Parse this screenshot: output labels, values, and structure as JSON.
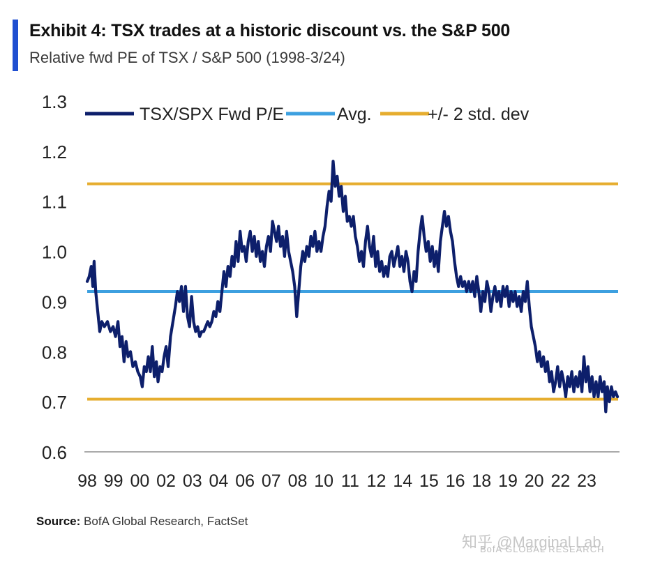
{
  "exhibit": {
    "title": "Exhibit 4: TSX trades at a historic discount vs. the S&P 500",
    "subtitle": "Relative fwd PE of TSX / S&P 500 (1998-3/24)",
    "source_label": "Source:",
    "source_text": "BofA Global Research, FactSet",
    "watermark": "知乎 @Marginal Lab",
    "footer_brand": "BofA GLOBAL RESEARCH"
  },
  "colors": {
    "accent": "#1f4fd1",
    "series": "#0d1f6b",
    "avg": "#3da0e0",
    "band": "#e6ad2f"
  },
  "chart_data": {
    "type": "line",
    "title": "Exhibit 4: TSX trades at a historic discount vs. the S&P 500",
    "subtitle": "Relative fwd PE of TSX / S&P 500 (1998-3/24)",
    "xlabel": "",
    "ylabel": "",
    "ylim": [
      0.6,
      1.3
    ],
    "yticks": [
      0.6,
      0.7,
      0.8,
      0.9,
      1.0,
      1.1,
      1.2,
      1.3
    ],
    "ytick_labels": [
      "0.6",
      "0.7",
      "0.8",
      "0.9",
      "1.0",
      "1.1",
      "1.2",
      "1.3"
    ],
    "xlim": [
      1998.0,
      2024.25
    ],
    "xticks": [
      {
        "label": "98",
        "x": 1998.0
      },
      {
        "label": "99",
        "x": 1999.3
      },
      {
        "label": "00",
        "x": 2000.6
      },
      {
        "label": "02",
        "x": 2001.9
      },
      {
        "label": "03",
        "x": 2003.2
      },
      {
        "label": "04",
        "x": 2004.5
      },
      {
        "label": "06",
        "x": 2005.8
      },
      {
        "label": "07",
        "x": 2007.1
      },
      {
        "label": "08",
        "x": 2008.4
      },
      {
        "label": "10",
        "x": 2009.7
      },
      {
        "label": "11",
        "x": 2011.0
      },
      {
        "label": "12",
        "x": 2012.3
      },
      {
        "label": "14",
        "x": 2013.6
      },
      {
        "label": "15",
        "x": 2014.9
      },
      {
        "label": "16",
        "x": 2016.2
      },
      {
        "label": "18",
        "x": 2017.5
      },
      {
        "label": "19",
        "x": 2018.8
      },
      {
        "label": "20",
        "x": 2020.1
      },
      {
        "label": "22",
        "x": 2021.4
      },
      {
        "label": "23",
        "x": 2022.7
      }
    ],
    "legend": {
      "position": "top-left",
      "entries": [
        {
          "name": "TSX/SPX Fwd P/E",
          "key": "series"
        },
        {
          "name": "Avg.",
          "key": "avg"
        },
        {
          "name": "+/- 2 std. dev",
          "key": "band"
        }
      ]
    },
    "grid": false,
    "reference_lines": [
      {
        "name": "Avg.",
        "value": 0.92
      },
      {
        "name": "+2 std. dev",
        "value": 1.135
      },
      {
        "name": "-2 std. dev",
        "value": 0.705
      }
    ],
    "series": [
      {
        "name": "TSX/SPX Fwd P/E",
        "points": [
          [
            1998.0,
            0.94
          ],
          [
            1998.1,
            0.95
          ],
          [
            1998.2,
            0.97
          ],
          [
            1998.28,
            0.93
          ],
          [
            1998.34,
            0.98
          ],
          [
            1998.42,
            0.92
          ],
          [
            1998.52,
            0.88
          ],
          [
            1998.62,
            0.84
          ],
          [
            1998.72,
            0.86
          ],
          [
            1998.85,
            0.85
          ],
          [
            1999.0,
            0.86
          ],
          [
            1999.15,
            0.84
          ],
          [
            1999.28,
            0.85
          ],
          [
            1999.4,
            0.83
          ],
          [
            1999.52,
            0.86
          ],
          [
            1999.62,
            0.81
          ],
          [
            1999.72,
            0.83
          ],
          [
            1999.82,
            0.78
          ],
          [
            1999.92,
            0.82
          ],
          [
            2000.02,
            0.79
          ],
          [
            2000.14,
            0.8
          ],
          [
            2000.26,
            0.77
          ],
          [
            2000.38,
            0.78
          ],
          [
            2000.5,
            0.76
          ],
          [
            2000.62,
            0.75
          ],
          [
            2000.72,
            0.73
          ],
          [
            2000.82,
            0.77
          ],
          [
            2000.92,
            0.76
          ],
          [
            2001.02,
            0.79
          ],
          [
            2001.12,
            0.76
          ],
          [
            2001.22,
            0.81
          ],
          [
            2001.32,
            0.75
          ],
          [
            2001.42,
            0.78
          ],
          [
            2001.5,
            0.74
          ],
          [
            2001.6,
            0.77
          ],
          [
            2001.7,
            0.76
          ],
          [
            2001.8,
            0.79
          ],
          [
            2001.9,
            0.81
          ],
          [
            2002.0,
            0.77
          ],
          [
            2002.12,
            0.83
          ],
          [
            2002.24,
            0.86
          ],
          [
            2002.36,
            0.89
          ],
          [
            2002.46,
            0.92
          ],
          [
            2002.56,
            0.9
          ],
          [
            2002.66,
            0.93
          ],
          [
            2002.76,
            0.88
          ],
          [
            2002.86,
            0.93
          ],
          [
            2002.96,
            0.87
          ],
          [
            2003.06,
            0.85
          ],
          [
            2003.16,
            0.91
          ],
          [
            2003.26,
            0.86
          ],
          [
            2003.36,
            0.84
          ],
          [
            2003.46,
            0.85
          ],
          [
            2003.56,
            0.83
          ],
          [
            2003.66,
            0.84
          ],
          [
            2003.76,
            0.84
          ],
          [
            2003.86,
            0.85
          ],
          [
            2003.96,
            0.86
          ],
          [
            2004.06,
            0.85
          ],
          [
            2004.16,
            0.86
          ],
          [
            2004.26,
            0.88
          ],
          [
            2004.36,
            0.87
          ],
          [
            2004.46,
            0.9
          ],
          [
            2004.56,
            0.88
          ],
          [
            2004.66,
            0.92
          ],
          [
            2004.76,
            0.96
          ],
          [
            2004.86,
            0.93
          ],
          [
            2004.96,
            0.97
          ],
          [
            2005.06,
            0.95
          ],
          [
            2005.16,
            0.99
          ],
          [
            2005.26,
            0.97
          ],
          [
            2005.36,
            1.02
          ],
          [
            2005.46,
            0.98
          ],
          [
            2005.56,
            1.04
          ],
          [
            2005.66,
            1.0
          ],
          [
            2005.76,
            1.01
          ],
          [
            2005.86,
            0.98
          ],
          [
            2005.96,
            1.02
          ],
          [
            2006.06,
            1.04
          ],
          [
            2006.16,
            1.0
          ],
          [
            2006.26,
            1.03
          ],
          [
            2006.36,
            0.99
          ],
          [
            2006.46,
            1.02
          ],
          [
            2006.56,
            0.98
          ],
          [
            2006.66,
            1.0
          ],
          [
            2006.76,
            0.97
          ],
          [
            2006.86,
            1.01
          ],
          [
            2006.96,
            1.03
          ],
          [
            2007.06,
            1.0
          ],
          [
            2007.16,
            1.06
          ],
          [
            2007.26,
            1.04
          ],
          [
            2007.36,
            1.02
          ],
          [
            2007.46,
            1.05
          ],
          [
            2007.56,
            1.01
          ],
          [
            2007.66,
            1.03
          ],
          [
            2007.76,
            0.99
          ],
          [
            2007.86,
            1.04
          ],
          [
            2007.96,
            1.0
          ],
          [
            2008.06,
            0.98
          ],
          [
            2008.16,
            0.96
          ],
          [
            2008.26,
            0.93
          ],
          [
            2008.36,
            0.87
          ],
          [
            2008.46,
            0.92
          ],
          [
            2008.56,
            0.97
          ],
          [
            2008.66,
            1.0
          ],
          [
            2008.76,
            0.98
          ],
          [
            2008.86,
            1.01
          ],
          [
            2008.96,
            0.99
          ],
          [
            2009.06,
            1.03
          ],
          [
            2009.16,
            1.01
          ],
          [
            2009.26,
            1.04
          ],
          [
            2009.36,
            1.0
          ],
          [
            2009.46,
            1.02
          ],
          [
            2009.56,
            1.0
          ],
          [
            2009.66,
            1.03
          ],
          [
            2009.76,
            1.05
          ],
          [
            2009.86,
            1.09
          ],
          [
            2009.96,
            1.12
          ],
          [
            2010.06,
            1.1
          ],
          [
            2010.16,
            1.18
          ],
          [
            2010.26,
            1.13
          ],
          [
            2010.36,
            1.15
          ],
          [
            2010.46,
            1.11
          ],
          [
            2010.56,
            1.13
          ],
          [
            2010.66,
            1.08
          ],
          [
            2010.76,
            1.11
          ],
          [
            2010.86,
            1.06
          ],
          [
            2010.96,
            1.07
          ],
          [
            2011.06,
            1.05
          ],
          [
            2011.16,
            1.07
          ],
          [
            2011.26,
            1.03
          ],
          [
            2011.36,
            1.01
          ],
          [
            2011.46,
            0.98
          ],
          [
            2011.56,
            1.0
          ],
          [
            2011.66,
            0.97
          ],
          [
            2011.76,
            1.02
          ],
          [
            2011.86,
            1.05
          ],
          [
            2011.96,
            1.01
          ],
          [
            2012.06,
            0.99
          ],
          [
            2012.16,
            1.03
          ],
          [
            2012.26,
            0.97
          ],
          [
            2012.36,
            1.0
          ],
          [
            2012.46,
            0.96
          ],
          [
            2012.56,
            0.98
          ],
          [
            2012.66,
            0.95
          ],
          [
            2012.76,
            0.97
          ],
          [
            2012.86,
            0.95
          ],
          [
            2012.96,
            0.99
          ],
          [
            2013.06,
            1.0
          ],
          [
            2013.16,
            0.97
          ],
          [
            2013.26,
            0.99
          ],
          [
            2013.36,
            1.01
          ],
          [
            2013.46,
            0.97
          ],
          [
            2013.56,
            0.99
          ],
          [
            2013.66,
            0.96
          ],
          [
            2013.76,
            1.0
          ],
          [
            2013.86,
            0.98
          ],
          [
            2013.96,
            0.94
          ],
          [
            2014.06,
            0.92
          ],
          [
            2014.16,
            0.96
          ],
          [
            2014.26,
            0.94
          ],
          [
            2014.36,
            1.0
          ],
          [
            2014.46,
            1.04
          ],
          [
            2014.56,
            1.07
          ],
          [
            2014.66,
            1.03
          ],
          [
            2014.76,
            1.0
          ],
          [
            2014.86,
            1.02
          ],
          [
            2014.96,
            0.98
          ],
          [
            2015.06,
            1.01
          ],
          [
            2015.16,
            0.97
          ],
          [
            2015.26,
            1.0
          ],
          [
            2015.36,
            0.96
          ],
          [
            2015.46,
            1.02
          ],
          [
            2015.56,
            1.05
          ],
          [
            2015.66,
            1.08
          ],
          [
            2015.76,
            1.05
          ],
          [
            2015.86,
            1.07
          ],
          [
            2015.96,
            1.04
          ],
          [
            2016.06,
            1.02
          ],
          [
            2016.16,
            0.98
          ],
          [
            2016.26,
            0.95
          ],
          [
            2016.36,
            0.93
          ],
          [
            2016.46,
            0.95
          ],
          [
            2016.56,
            0.93
          ],
          [
            2016.66,
            0.94
          ],
          [
            2016.76,
            0.92
          ],
          [
            2016.86,
            0.94
          ],
          [
            2016.96,
            0.92
          ],
          [
            2017.06,
            0.94
          ],
          [
            2017.16,
            0.91
          ],
          [
            2017.26,
            0.95
          ],
          [
            2017.36,
            0.92
          ],
          [
            2017.46,
            0.88
          ],
          [
            2017.56,
            0.92
          ],
          [
            2017.66,
            0.9
          ],
          [
            2017.76,
            0.94
          ],
          [
            2017.86,
            0.92
          ],
          [
            2017.96,
            0.88
          ],
          [
            2018.06,
            0.91
          ],
          [
            2018.16,
            0.93
          ],
          [
            2018.26,
            0.9
          ],
          [
            2018.36,
            0.92
          ],
          [
            2018.46,
            0.89
          ],
          [
            2018.56,
            0.93
          ],
          [
            2018.66,
            0.91
          ],
          [
            2018.76,
            0.93
          ],
          [
            2018.86,
            0.89
          ],
          [
            2018.96,
            0.92
          ],
          [
            2019.06,
            0.9
          ],
          [
            2019.16,
            0.92
          ],
          [
            2019.26,
            0.89
          ],
          [
            2019.36,
            0.91
          ],
          [
            2019.46,
            0.88
          ],
          [
            2019.56,
            0.92
          ],
          [
            2019.66,
            0.9
          ],
          [
            2019.76,
            0.94
          ],
          [
            2019.86,
            0.89
          ],
          [
            2019.96,
            0.85
          ],
          [
            2020.06,
            0.83
          ],
          [
            2020.16,
            0.81
          ],
          [
            2020.26,
            0.78
          ],
          [
            2020.36,
            0.8
          ],
          [
            2020.46,
            0.77
          ],
          [
            2020.56,
            0.79
          ],
          [
            2020.66,
            0.76
          ],
          [
            2020.76,
            0.78
          ],
          [
            2020.86,
            0.74
          ],
          [
            2020.96,
            0.76
          ],
          [
            2021.06,
            0.72
          ],
          [
            2021.16,
            0.74
          ],
          [
            2021.26,
            0.77
          ],
          [
            2021.36,
            0.73
          ],
          [
            2021.46,
            0.76
          ],
          [
            2021.56,
            0.74
          ],
          [
            2021.66,
            0.71
          ],
          [
            2021.76,
            0.75
          ],
          [
            2021.86,
            0.73
          ],
          [
            2021.96,
            0.76
          ],
          [
            2022.06,
            0.72
          ],
          [
            2022.16,
            0.75
          ],
          [
            2022.26,
            0.73
          ],
          [
            2022.36,
            0.76
          ],
          [
            2022.46,
            0.72
          ],
          [
            2022.56,
            0.79
          ],
          [
            2022.66,
            0.74
          ],
          [
            2022.76,
            0.77
          ],
          [
            2022.86,
            0.72
          ],
          [
            2022.96,
            0.75
          ],
          [
            2023.06,
            0.71
          ],
          [
            2023.16,
            0.74
          ],
          [
            2023.26,
            0.71
          ],
          [
            2023.36,
            0.75
          ],
          [
            2023.46,
            0.72
          ],
          [
            2023.56,
            0.74
          ],
          [
            2023.64,
            0.68
          ],
          [
            2023.72,
            0.73
          ],
          [
            2023.82,
            0.7
          ],
          [
            2023.92,
            0.73
          ],
          [
            2024.02,
            0.71
          ],
          [
            2024.12,
            0.72
          ],
          [
            2024.22,
            0.71
          ]
        ]
      }
    ]
  }
}
